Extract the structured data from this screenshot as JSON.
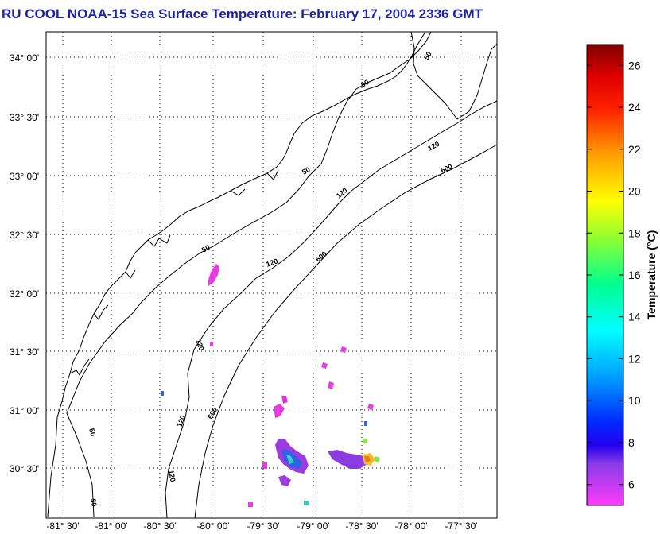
{
  "title": "RU COOL  NOAA-15  Sea Surface Temperature:  February 17, 2004 2336 GMT",
  "map": {
    "lat_labels": [
      "34° 00'",
      "33° 30'",
      "33° 00'",
      "32° 30'",
      "32° 00'",
      "31° 30'",
      "31° 00'",
      "30° 30'"
    ],
    "lon_labels": [
      "-81° 30'",
      "-81° 00'",
      "-80° 30'",
      "-80° 00'",
      "-79° 30'",
      "-79° 00'",
      "-78° 30'",
      "-78° 00'",
      "-77° 30'"
    ],
    "isobaths": [
      {
        "depth": "50",
        "labels": 6
      },
      {
        "depth": "120",
        "labels": 6
      },
      {
        "depth": "600",
        "labels": 3
      }
    ]
  },
  "colorbar": {
    "label": "Temperature (°C)",
    "ticks": [
      "26",
      "24",
      "22",
      "20",
      "18",
      "16",
      "14",
      "12",
      "10",
      "8",
      "6"
    ],
    "min": 5,
    "max": 27
  }
}
